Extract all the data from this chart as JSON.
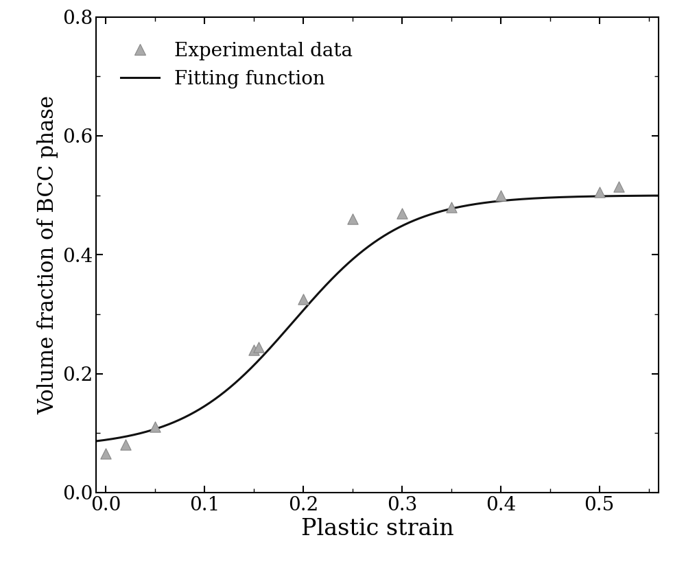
{
  "experimental_x": [
    0.0,
    0.02,
    0.05,
    0.15,
    0.155,
    0.2,
    0.25,
    0.3,
    0.35,
    0.4,
    0.5,
    0.52
  ],
  "experimental_y": [
    0.065,
    0.08,
    0.11,
    0.24,
    0.245,
    0.325,
    0.46,
    0.47,
    0.48,
    0.5,
    0.505,
    0.515
  ],
  "fit_A": 0.425,
  "fit_x0": 0.19,
  "fit_k": 18.0,
  "fit_y0": 0.075,
  "xlim": [
    -0.01,
    0.56
  ],
  "ylim": [
    0.0,
    0.8
  ],
  "xticks": [
    0.0,
    0.1,
    0.2,
    0.3,
    0.4,
    0.5
  ],
  "yticks": [
    0.0,
    0.2,
    0.4,
    0.6,
    0.8
  ],
  "xlabel": "Plastic strain",
  "ylabel": "Volume fraction of BCC phase",
  "marker_color": "#aaaaaa",
  "marker_edge_color": "#888888",
  "line_color": "#111111",
  "background_color": "#ffffff",
  "legend_labels": [
    "Experimental data",
    "Fitting function"
  ],
  "xlabel_fontsize": 24,
  "ylabel_fontsize": 22,
  "tick_fontsize": 20,
  "legend_fontsize": 20,
  "marker_size": 11,
  "line_width": 2.2
}
